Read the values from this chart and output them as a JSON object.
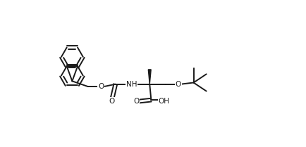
{
  "background_color": "#ffffff",
  "line_color": "#1a1a1a",
  "line_width": 1.4,
  "figsize": [
    4.34,
    2.09
  ],
  "dpi": 100,
  "xlim": [
    0,
    10
  ],
  "ylim": [
    0,
    4.8
  ]
}
